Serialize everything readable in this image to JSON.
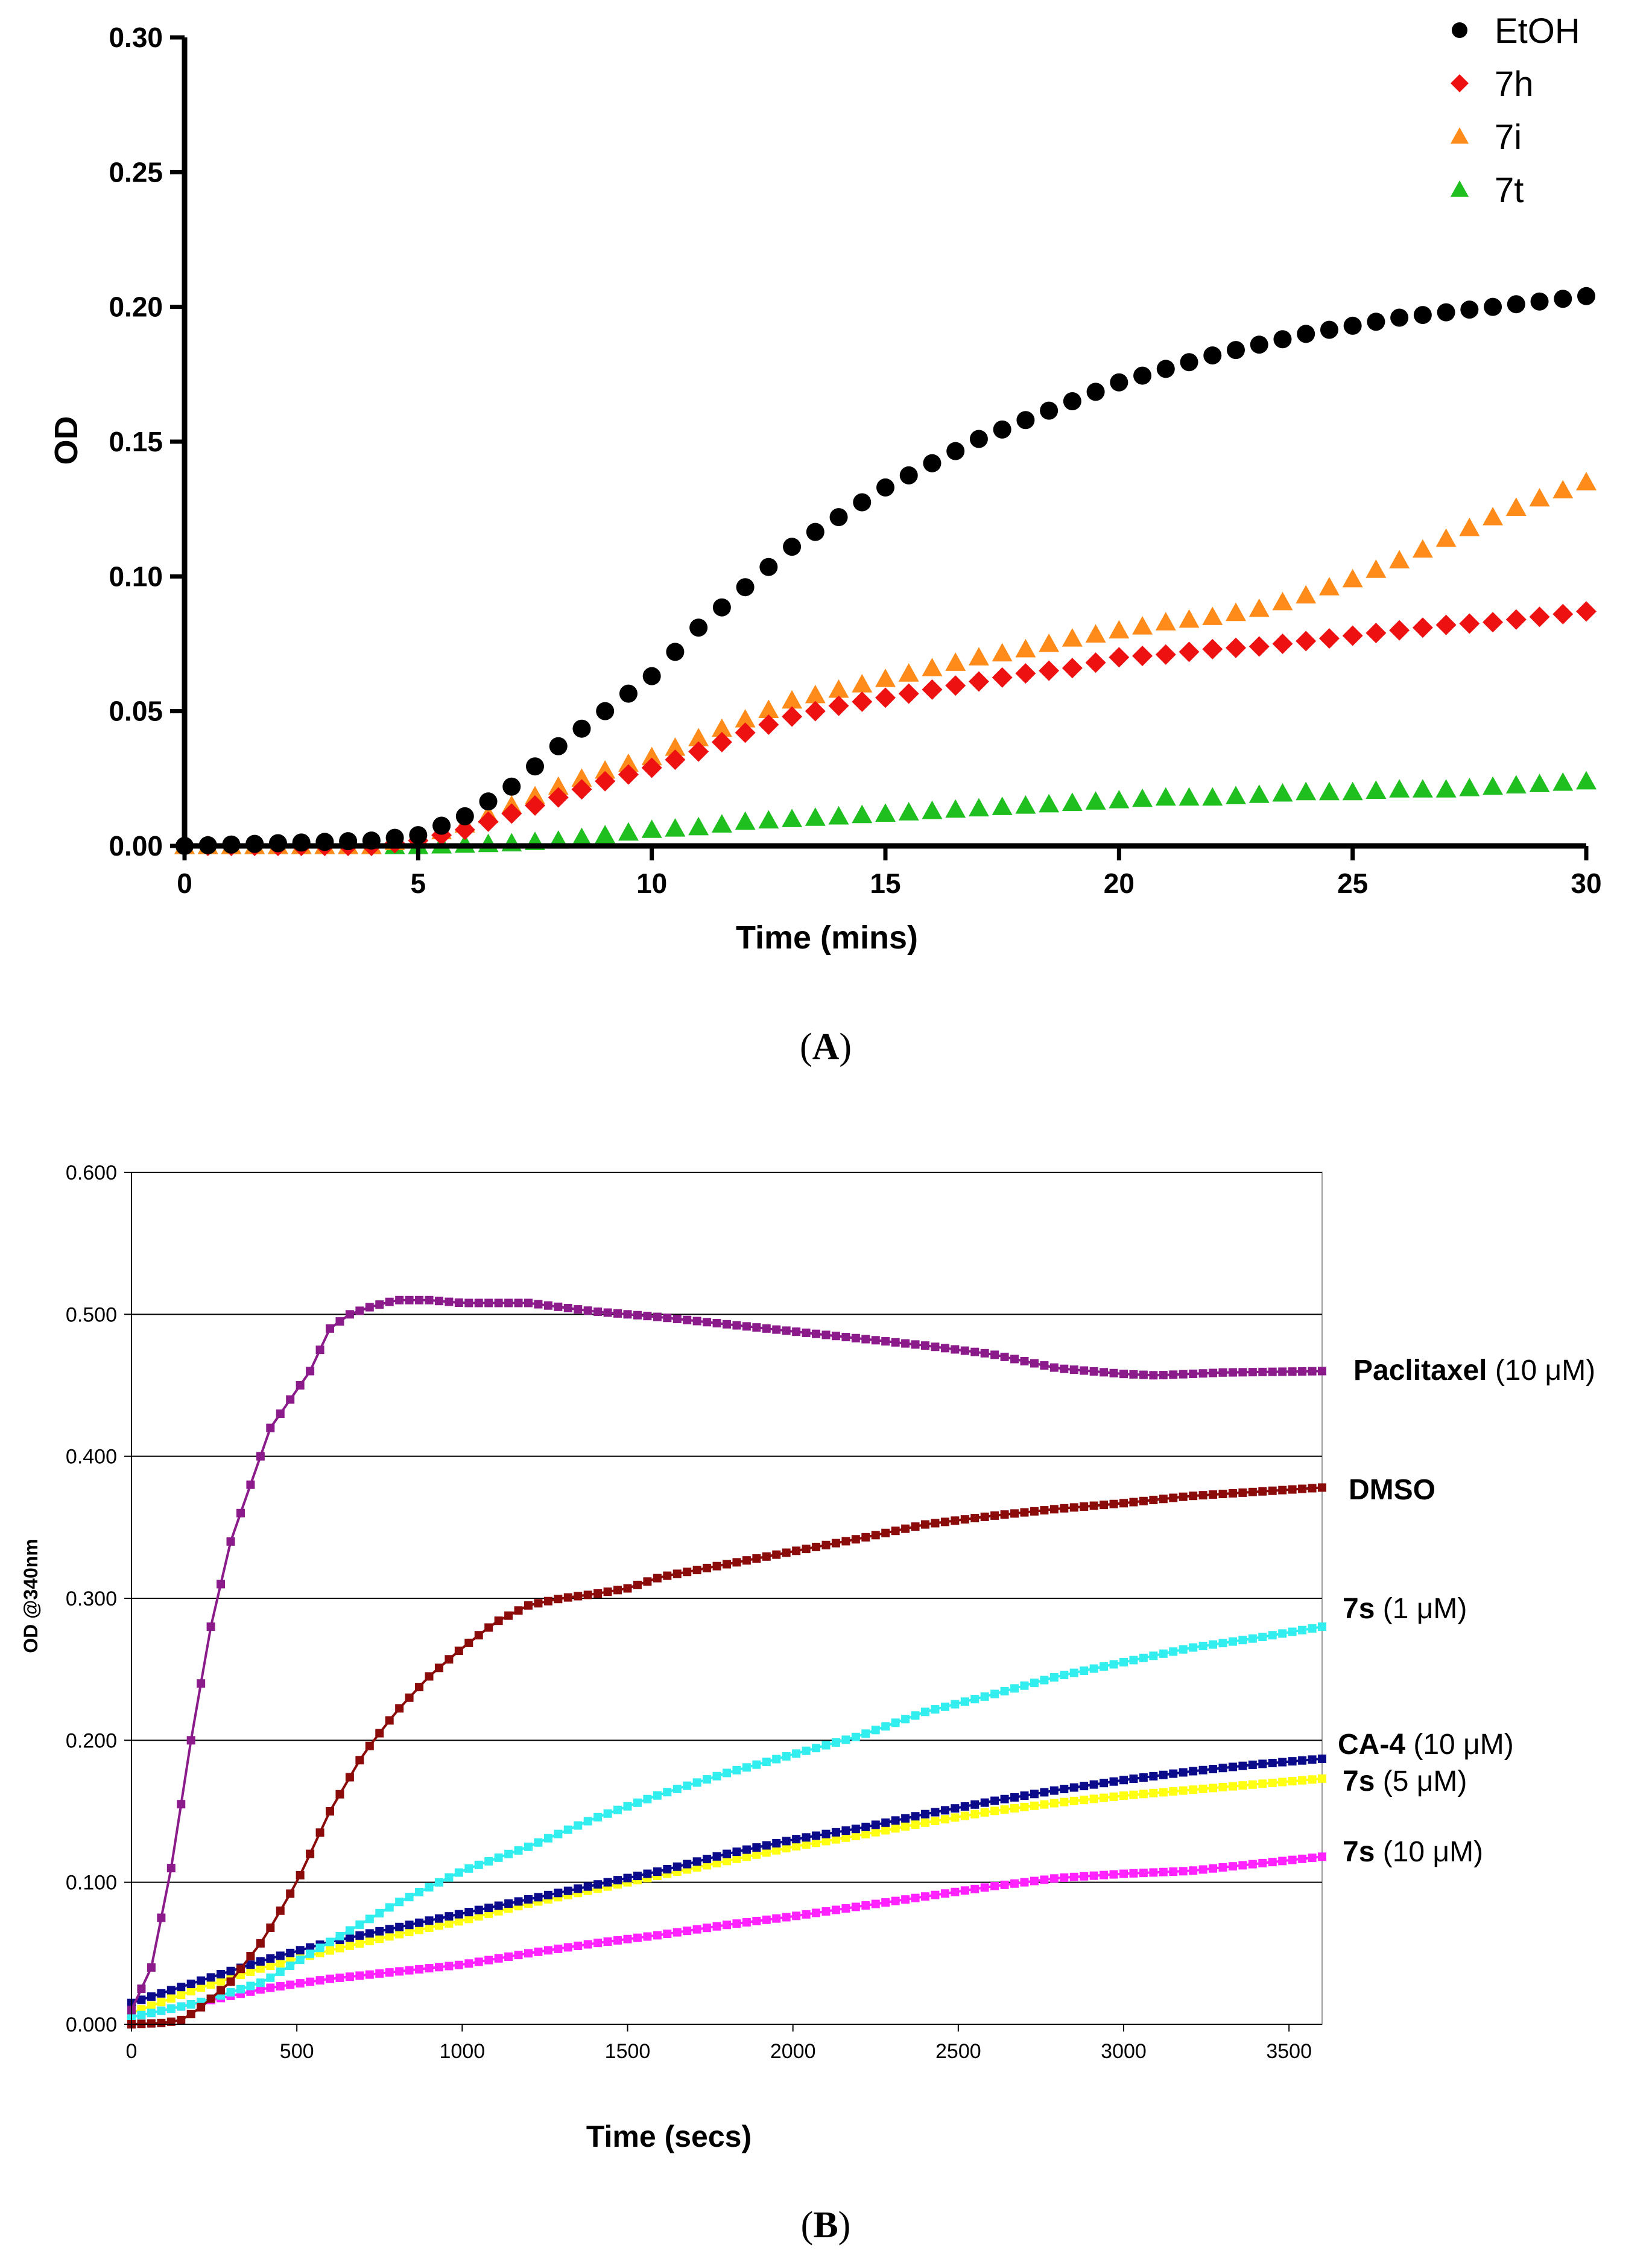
{
  "panels": [
    "(A)",
    "(B)"
  ],
  "chart_data": [
    {
      "type": "scatter",
      "panel": "A",
      "xlabel": "Time (mins)",
      "ylabel": "OD",
      "xlim": [
        0,
        30
      ],
      "ylim": [
        0,
        0.3
      ],
      "xticks": [
        "0",
        "5",
        "10",
        "15",
        "20",
        "25",
        "30"
      ],
      "yticks": [
        "0.00",
        "0.05",
        "0.10",
        "0.15",
        "0.20",
        "0.25",
        "0.30"
      ],
      "legend_position": "top-right",
      "time_step": 0.5,
      "series": [
        {
          "name": "EtOH",
          "marker": "circle",
          "color": "#000000",
          "keypoints": [
            [
              0,
              0
            ],
            [
              2,
              0.001
            ],
            [
              4,
              0.002
            ],
            [
              5,
              0.004
            ],
            [
              6,
              0.011
            ],
            [
              7,
              0.022
            ],
            [
              8,
              0.037
            ],
            [
              9,
              0.05
            ],
            [
              10,
              0.063
            ],
            [
              11,
              0.081
            ],
            [
              12,
              0.096
            ],
            [
              13,
              0.111
            ],
            [
              14,
              0.122
            ],
            [
              15,
              0.133
            ],
            [
              16,
              0.142
            ],
            [
              17,
              0.151
            ],
            [
              18,
              0.158
            ],
            [
              19,
              0.165
            ],
            [
              20,
              0.172
            ],
            [
              21,
              0.177
            ],
            [
              22,
              0.182
            ],
            [
              23,
              0.186
            ],
            [
              24,
              0.19
            ],
            [
              25,
              0.193
            ],
            [
              26,
              0.196
            ],
            [
              27,
              0.198
            ],
            [
              28,
              0.2
            ],
            [
              29,
              0.202
            ],
            [
              30,
              0.204
            ]
          ]
        },
        {
          "name": "7h",
          "marker": "diamond",
          "color": "#ee1111",
          "keypoints": [
            [
              0,
              0
            ],
            [
              4,
              0
            ],
            [
              5,
              0.002
            ],
            [
              6,
              0.006
            ],
            [
              7,
              0.012
            ],
            [
              8,
              0.018
            ],
            [
              9,
              0.024
            ],
            [
              10,
              0.029
            ],
            [
              11,
              0.035
            ],
            [
              12,
              0.042
            ],
            [
              13,
              0.048
            ],
            [
              14,
              0.052
            ],
            [
              15,
              0.055
            ],
            [
              16,
              0.058
            ],
            [
              17,
              0.061
            ],
            [
              18,
              0.064
            ],
            [
              19,
              0.066
            ],
            [
              20,
              0.07
            ],
            [
              21,
              0.071
            ],
            [
              22,
              0.073
            ],
            [
              23,
              0.074
            ],
            [
              24,
              0.076
            ],
            [
              25,
              0.078
            ],
            [
              26,
              0.08
            ],
            [
              27,
              0.082
            ],
            [
              28,
              0.083
            ],
            [
              29,
              0.085
            ],
            [
              30,
              0.087
            ]
          ]
        },
        {
          "name": "7i",
          "marker": "triangle",
          "color": "#ff8c1a",
          "keypoints": [
            [
              0,
              0
            ],
            [
              4,
              0
            ],
            [
              5,
              0.003
            ],
            [
              6,
              0.008
            ],
            [
              7,
              0.015
            ],
            [
              8,
              0.022
            ],
            [
              9,
              0.028
            ],
            [
              10,
              0.033
            ],
            [
              11,
              0.04
            ],
            [
              12,
              0.047
            ],
            [
              13,
              0.054
            ],
            [
              14,
              0.058
            ],
            [
              15,
              0.062
            ],
            [
              16,
              0.066
            ],
            [
              17,
              0.07
            ],
            [
              18,
              0.073
            ],
            [
              19,
              0.077
            ],
            [
              20,
              0.08
            ],
            [
              21,
              0.083
            ],
            [
              22,
              0.085
            ],
            [
              23,
              0.088
            ],
            [
              24,
              0.093
            ],
            [
              25,
              0.099
            ],
            [
              26,
              0.106
            ],
            [
              27,
              0.114
            ],
            [
              28,
              0.122
            ],
            [
              29,
              0.129
            ],
            [
              30,
              0.135
            ]
          ]
        },
        {
          "name": "7t",
          "marker": "triangle",
          "color": "#1fbf1f",
          "keypoints": [
            [
              0,
              0
            ],
            [
              5,
              0
            ],
            [
              6,
              0.0005
            ],
            [
              7,
              0.001
            ],
            [
              8,
              0.002
            ],
            [
              9,
              0.004
            ],
            [
              10,
              0.006
            ],
            [
              11,
              0.007
            ],
            [
              12,
              0.009
            ],
            [
              13,
              0.01
            ],
            [
              14,
              0.011
            ],
            [
              15,
              0.012
            ],
            [
              16,
              0.013
            ],
            [
              17,
              0.014
            ],
            [
              18,
              0.015
            ],
            [
              19,
              0.016
            ],
            [
              20,
              0.017
            ],
            [
              21,
              0.018
            ],
            [
              22,
              0.018
            ],
            [
              23,
              0.019
            ],
            [
              24,
              0.02
            ],
            [
              25,
              0.02
            ],
            [
              26,
              0.021
            ],
            [
              27,
              0.021
            ],
            [
              28,
              0.022
            ],
            [
              29,
              0.023
            ],
            [
              30,
              0.024
            ]
          ]
        }
      ]
    },
    {
      "type": "line",
      "panel": "B",
      "xlabel": "Time (secs)",
      "ylabel": "OD @340nm",
      "xlim": [
        0,
        3600
      ],
      "ylim": [
        0,
        0.6
      ],
      "grid": "horizontal",
      "xticks": [
        "0",
        "500",
        "1000",
        "1500",
        "2000",
        "2500",
        "3000",
        "3500"
      ],
      "yticks": [
        "0.000",
        "0.100",
        "0.200",
        "0.300",
        "0.400",
        "0.500",
        "0.600"
      ],
      "time_step": 30,
      "series": [
        {
          "name": "Paclitaxel",
          "bold": "Paclitaxel",
          "conc": " (10 μM)",
          "color": "#8b1a8b",
          "keypoints": [
            [
              0,
              0.01
            ],
            [
              60,
              0.04
            ],
            [
              120,
              0.11
            ],
            [
              180,
              0.2
            ],
            [
              240,
              0.28
            ],
            [
              300,
              0.34
            ],
            [
              360,
              0.38
            ],
            [
              420,
              0.42
            ],
            [
              480,
              0.44
            ],
            [
              540,
              0.46
            ],
            [
              600,
              0.49
            ],
            [
              660,
              0.5
            ],
            [
              720,
              0.505
            ],
            [
              800,
              0.51
            ],
            [
              900,
              0.51
            ],
            [
              1000,
              0.508
            ],
            [
              1200,
              0.508
            ],
            [
              1400,
              0.502
            ],
            [
              1600,
              0.498
            ],
            [
              1800,
              0.493
            ],
            [
              2000,
              0.488
            ],
            [
              2200,
              0.483
            ],
            [
              2400,
              0.478
            ],
            [
              2600,
              0.472
            ],
            [
              2800,
              0.462
            ],
            [
              3000,
              0.458
            ],
            [
              3100,
              0.457
            ],
            [
              3300,
              0.459
            ],
            [
              3600,
              0.46
            ]
          ]
        },
        {
          "name": "DMSO",
          "bold": "DMSO",
          "conc": "",
          "color": "#8b0a0a",
          "keypoints": [
            [
              0,
              0
            ],
            [
              100,
              0.001
            ],
            [
              150,
              0.003
            ],
            [
              200,
              0.01
            ],
            [
              300,
              0.03
            ],
            [
              400,
              0.06
            ],
            [
              500,
              0.1
            ],
            [
              600,
              0.15
            ],
            [
              700,
              0.19
            ],
            [
              800,
              0.22
            ],
            [
              900,
              0.245
            ],
            [
              1000,
              0.265
            ],
            [
              1100,
              0.283
            ],
            [
              1200,
              0.295
            ],
            [
              1300,
              0.3
            ],
            [
              1400,
              0.303
            ],
            [
              1500,
              0.307
            ],
            [
              1600,
              0.315
            ],
            [
              1800,
              0.324
            ],
            [
              2000,
              0.333
            ],
            [
              2200,
              0.342
            ],
            [
              2400,
              0.352
            ],
            [
              2600,
              0.358
            ],
            [
              2800,
              0.363
            ],
            [
              3000,
              0.367
            ],
            [
              3200,
              0.372
            ],
            [
              3400,
              0.375
            ],
            [
              3600,
              0.378
            ]
          ]
        },
        {
          "name": "7s (1 μM)",
          "bold": "7s",
          "conc": " (1 μM)",
          "color": "#33eeee",
          "keypoints": [
            [
              0,
              0.005
            ],
            [
              200,
              0.015
            ],
            [
              400,
              0.03
            ],
            [
              600,
              0.058
            ],
            [
              800,
              0.085
            ],
            [
              1000,
              0.108
            ],
            [
              1200,
              0.125
            ],
            [
              1400,
              0.145
            ],
            [
              1600,
              0.162
            ],
            [
              1800,
              0.177
            ],
            [
              2000,
              0.19
            ],
            [
              2200,
              0.203
            ],
            [
              2400,
              0.22
            ],
            [
              2600,
              0.232
            ],
            [
              2800,
              0.245
            ],
            [
              3000,
              0.255
            ],
            [
              3200,
              0.265
            ],
            [
              3400,
              0.272
            ],
            [
              3600,
              0.28
            ]
          ]
        },
        {
          "name": "CA-4 (10 μM)",
          "bold": "CA-4",
          "conc": " (10 μM)",
          "color": "#0a0a8a",
          "keypoints": [
            [
              0,
              0.015
            ],
            [
              200,
              0.03
            ],
            [
              400,
              0.045
            ],
            [
              600,
              0.058
            ],
            [
              800,
              0.068
            ],
            [
              1000,
              0.078
            ],
            [
              1200,
              0.088
            ],
            [
              1400,
              0.098
            ],
            [
              1600,
              0.108
            ],
            [
              1800,
              0.12
            ],
            [
              2000,
              0.13
            ],
            [
              2200,
              0.138
            ],
            [
              2400,
              0.148
            ],
            [
              2600,
              0.157
            ],
            [
              2800,
              0.165
            ],
            [
              3000,
              0.172
            ],
            [
              3200,
              0.178
            ],
            [
              3400,
              0.183
            ],
            [
              3600,
              0.187
            ]
          ]
        },
        {
          "name": "7s (5 μM)",
          "bold": "7s",
          "conc": " (5 μM)",
          "color": "#ffff11",
          "keypoints": [
            [
              0,
              0.008
            ],
            [
              200,
              0.025
            ],
            [
              400,
              0.04
            ],
            [
              600,
              0.052
            ],
            [
              800,
              0.063
            ],
            [
              1000,
              0.073
            ],
            [
              1200,
              0.085
            ],
            [
              1400,
              0.095
            ],
            [
              1600,
              0.105
            ],
            [
              1800,
              0.115
            ],
            [
              2000,
              0.125
            ],
            [
              2200,
              0.133
            ],
            [
              2400,
              0.142
            ],
            [
              2600,
              0.15
            ],
            [
              2800,
              0.156
            ],
            [
              3000,
              0.161
            ],
            [
              3200,
              0.165
            ],
            [
              3400,
              0.169
            ],
            [
              3600,
              0.173
            ]
          ]
        },
        {
          "name": "7s (10 μM)",
          "bold": "7s",
          "conc": " (10 μM)",
          "color": "#ff22ff",
          "keypoints": [
            [
              0,
              0.005
            ],
            [
              200,
              0.015
            ],
            [
              400,
              0.025
            ],
            [
              600,
              0.032
            ],
            [
              800,
              0.037
            ],
            [
              1000,
              0.042
            ],
            [
              1200,
              0.05
            ],
            [
              1400,
              0.057
            ],
            [
              1600,
              0.063
            ],
            [
              1800,
              0.07
            ],
            [
              2000,
              0.076
            ],
            [
              2200,
              0.083
            ],
            [
              2400,
              0.09
            ],
            [
              2600,
              0.097
            ],
            [
              2800,
              0.103
            ],
            [
              3000,
              0.106
            ],
            [
              3200,
              0.108
            ],
            [
              3400,
              0.113
            ],
            [
              3600,
              0.118
            ]
          ]
        }
      ]
    }
  ]
}
